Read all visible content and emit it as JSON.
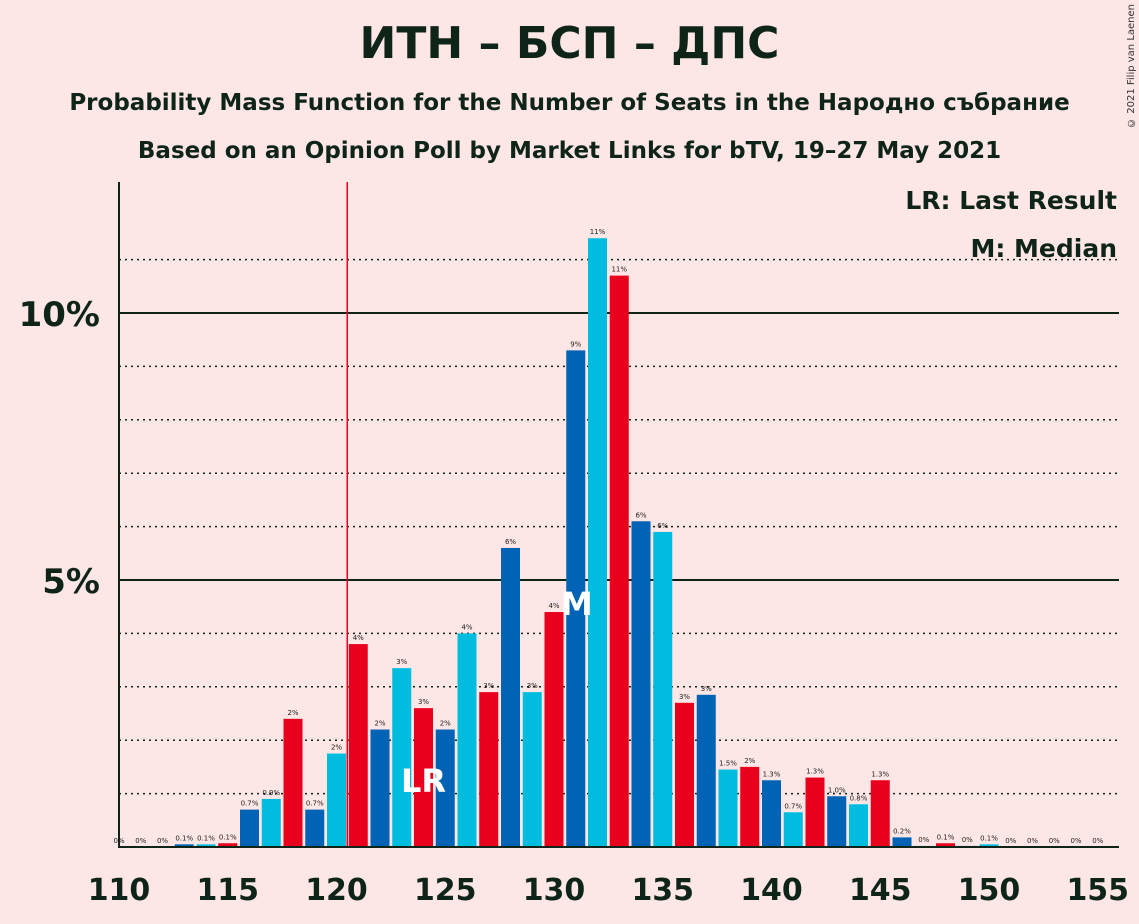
{
  "header": {
    "title": "ИТН – БСП – ДПС",
    "subtitle1": "Probability Mass Function for the Number of Seats in the Народно събрание",
    "subtitle2": "Based on an Opinion Poll by Market Links for bTV, 19–27 May 2021",
    "copyright": "© 2021 Filip van Laenen"
  },
  "legend": {
    "lr": "LR: Last Result",
    "median": "M: Median"
  },
  "markers": {
    "last_result_label": "LR",
    "median_label": "M"
  },
  "colors": {
    "background": "#fde6e6",
    "red": "#e8001c",
    "blue": "#0063b5",
    "cyan": "#00bde0",
    "lr_line": "#e8001c"
  },
  "chart_data": {
    "type": "bar",
    "x": [
      110,
      111,
      112,
      113,
      114,
      115,
      116,
      117,
      118,
      119,
      120,
      121,
      122,
      123,
      124,
      125,
      126,
      127,
      128,
      129,
      130,
      131,
      132,
      133,
      134,
      135,
      136,
      137,
      138,
      139,
      140,
      141,
      142,
      143,
      144,
      145,
      146,
      147,
      148,
      149,
      150,
      151,
      152,
      153,
      154,
      155
    ],
    "values": [
      0,
      0,
      0,
      0.05,
      0.05,
      0.07,
      0.7,
      0.9,
      2.4,
      0.7,
      1.75,
      3.8,
      2.2,
      3.35,
      2.6,
      2.2,
      4.0,
      2.9,
      5.6,
      2.9,
      4.4,
      9.3,
      11.4,
      10.7,
      6.1,
      5.9,
      2.7,
      2.85,
      1.45,
      1.5,
      1.25,
      0.65,
      1.3,
      0.95,
      0.8,
      1.25,
      0.18,
      0.02,
      0.07,
      0.02,
      0.05,
      0,
      0,
      0,
      0,
      0
    ],
    "labels": [
      "0%",
      "0%",
      "0%",
      "0.1%",
      "0.1%",
      "0.1%",
      "0.7%",
      "0.9%",
      "2%",
      "0.7%",
      "2%",
      "4%",
      "2%",
      "3%",
      "3%",
      "2%",
      "4%",
      "3%",
      "6%",
      "3%",
      "4%",
      "9%",
      "11%",
      "11%",
      "6%",
      "6%",
      "3%",
      "3%",
      "1.5%",
      "2%",
      "1.3%",
      "0.7%",
      "1.3%",
      "1.0%",
      "0.8%",
      "1.3%",
      "0.2%",
      "0%",
      "0.1%",
      "0%",
      "0.1%",
      "0%",
      "0%",
      "0%",
      "0%",
      "0%"
    ],
    "color_cycle": [
      "blue",
      "cyan",
      "red"
    ],
    "x_ticks": [
      "110",
      "115",
      "120",
      "125",
      "130",
      "135",
      "140",
      "145",
      "150",
      "155"
    ],
    "y_ticks": [
      "5%",
      "10%"
    ],
    "ylim": [
      0,
      12.5
    ],
    "last_result": 121,
    "median": 131
  }
}
